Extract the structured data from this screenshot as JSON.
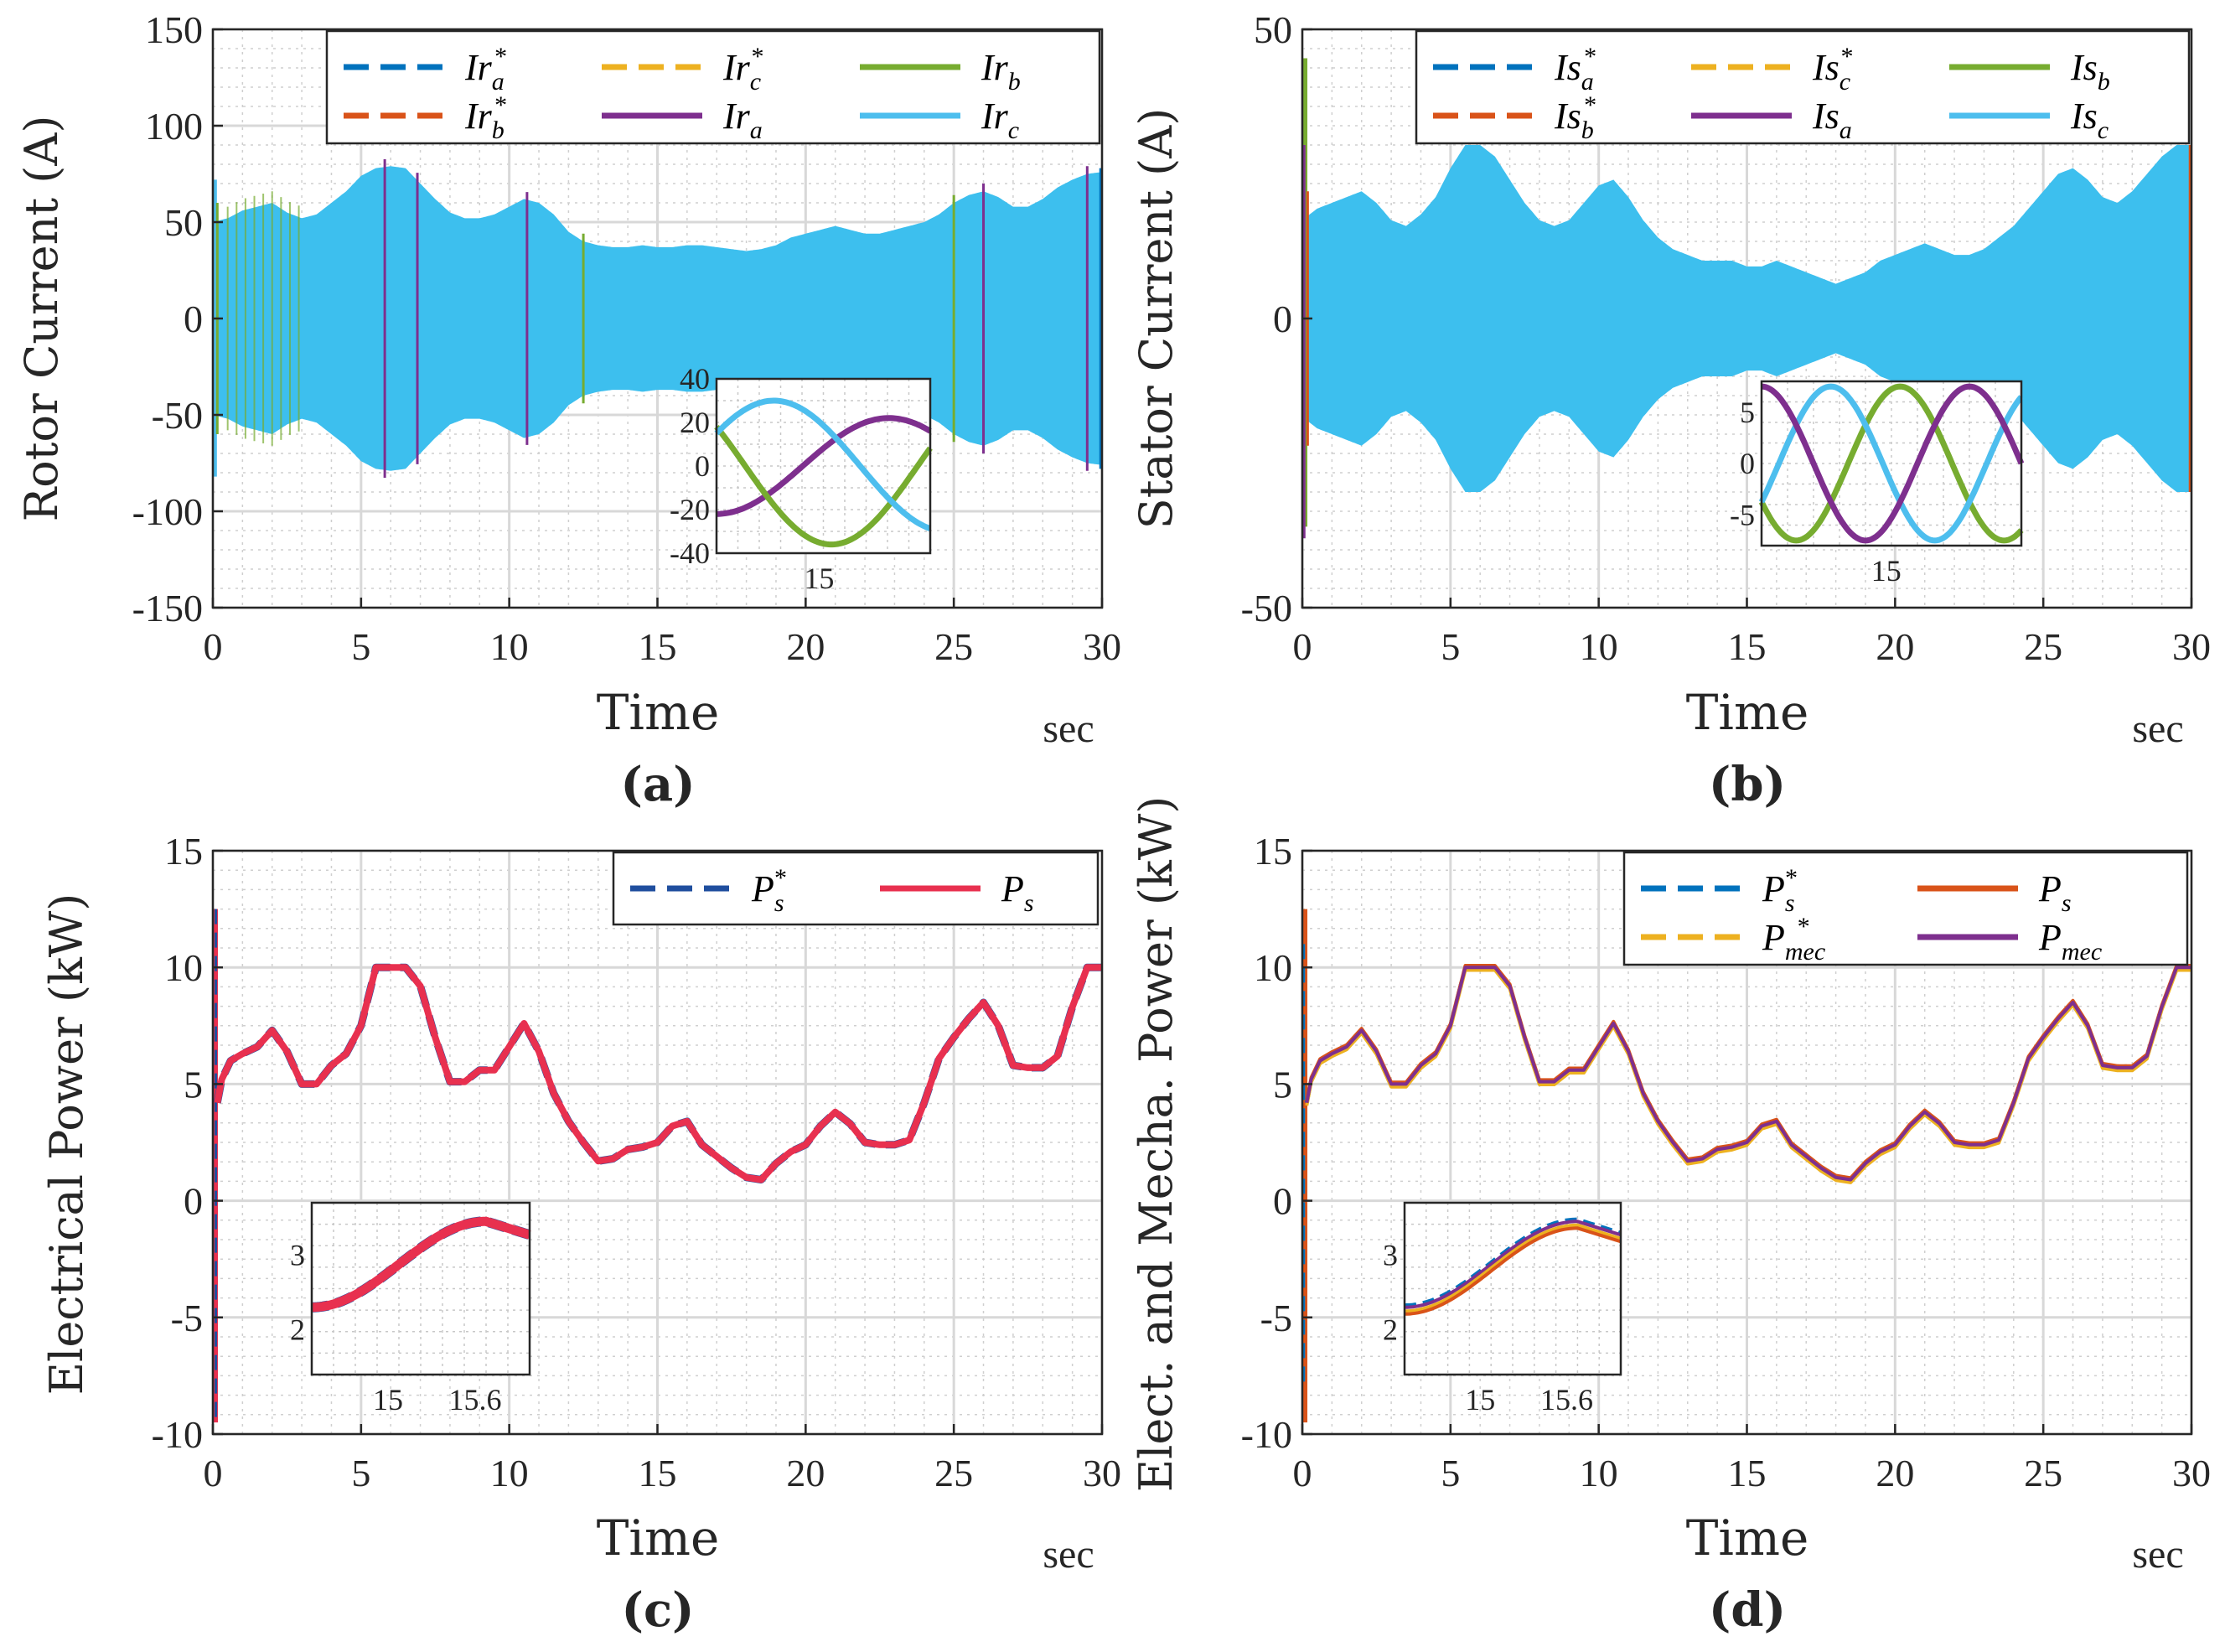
{
  "chart_data": [
    {
      "type": "line",
      "panel": "(a)",
      "xlabel": "Time",
      "x_unit": "sec",
      "ylabel": "Rotor Current (A)",
      "xlim": [
        0,
        30
      ],
      "ylim": [
        -150,
        150
      ],
      "xticks": [
        "0",
        "5",
        "10",
        "15",
        "20",
        "25",
        "30"
      ],
      "yticks": [
        "150",
        "100",
        "50",
        "0",
        "-50",
        "-100",
        "-150"
      ],
      "legend_position": "top-right",
      "legend": [
        {
          "label": "Ir_a*",
          "base": "Ir",
          "sub": "a",
          "sup": "*",
          "color": "#0072BD",
          "dash": true
        },
        {
          "label": "Ir_c*",
          "base": "Ir",
          "sub": "c",
          "sup": "*",
          "color": "#EDB120",
          "dash": true
        },
        {
          "label": "Ir_b",
          "base": "Ir",
          "sub": "b",
          "sup": "",
          "color": "#77AC30",
          "dash": false
        },
        {
          "label": "Ir_b*",
          "base": "Ir",
          "sub": "b",
          "sup": "*",
          "color": "#D95319",
          "dash": true
        },
        {
          "label": "Ir_a",
          "base": "Ir",
          "sub": "a",
          "sup": "",
          "color": "#7E2F8E",
          "dash": false
        },
        {
          "label": "Ir_c",
          "base": "Ir",
          "sub": "c",
          "sup": "",
          "color": "#4DBEEE",
          "dash": false
        }
      ],
      "envelope_series": {
        "name": "Ir amplitude envelope",
        "x": [
          0,
          0.5,
          1,
          1.5,
          2,
          2.5,
          3,
          3.5,
          4,
          4.5,
          5,
          5.5,
          6,
          6.5,
          7,
          7.5,
          8,
          8.5,
          9,
          9.5,
          10,
          10.5,
          11,
          11.5,
          12,
          12.5,
          13,
          13.5,
          14,
          14.5,
          15,
          15.5,
          16,
          16.5,
          17,
          17.5,
          18,
          18.5,
          19,
          19.5,
          20,
          20.5,
          21,
          21.5,
          22,
          22.5,
          23,
          23.5,
          24,
          24.5,
          25,
          25.5,
          26,
          26.5,
          27,
          27.5,
          28,
          28.5,
          29,
          29.5,
          30
        ],
        "y": [
          50,
          52,
          56,
          58,
          60,
          55,
          52,
          54,
          60,
          66,
          74,
          78,
          79,
          78,
          70,
          62,
          55,
          52,
          52,
          54,
          58,
          62,
          60,
          54,
          45,
          40,
          38,
          37,
          37,
          38,
          37,
          37,
          38,
          38,
          37,
          36,
          35,
          36,
          38,
          42,
          44,
          46,
          48,
          46,
          44,
          44,
          46,
          48,
          50,
          54,
          60,
          64,
          66,
          63,
          58,
          58,
          62,
          68,
          72,
          75,
          76
        ]
      },
      "inset": {
        "xtick": "15",
        "yticks": [
          "40",
          "20",
          "0",
          "-20",
          "-40"
        ],
        "ylim": [
          -40,
          40
        ],
        "series": [
          {
            "name": "Ir_a",
            "color": "#7E2F8E",
            "amplitude": 22,
            "phase_deg": 180
          },
          {
            "name": "Ir_b",
            "color": "#77AC30",
            "amplitude": 36,
            "phase_deg": 60
          },
          {
            "name": "Ir_c",
            "color": "#4DBEEE",
            "amplitude": 30,
            "phase_deg": -60
          }
        ]
      }
    },
    {
      "type": "line",
      "panel": "(b)",
      "xlabel": "Time",
      "x_unit": "sec",
      "ylabel": "Stator Current (A)",
      "xlim": [
        0,
        30
      ],
      "ylim": [
        -50,
        50
      ],
      "xticks": [
        "0",
        "5",
        "10",
        "15",
        "20",
        "25",
        "30"
      ],
      "yticks": [
        "50",
        "0",
        "-50"
      ],
      "legend_position": "top-right",
      "legend": [
        {
          "label": "Is_a*",
          "base": "Is",
          "sub": "a",
          "sup": "*",
          "color": "#0072BD",
          "dash": true
        },
        {
          "label": "Is_c*",
          "base": "Is",
          "sub": "c",
          "sup": "*",
          "color": "#EDB120",
          "dash": true
        },
        {
          "label": "Is_b",
          "base": "Is",
          "sub": "b",
          "sup": "",
          "color": "#77AC30",
          "dash": false
        },
        {
          "label": "Is_b*",
          "base": "Is",
          "sub": "b",
          "sup": "*",
          "color": "#D95319",
          "dash": true
        },
        {
          "label": "Is_a",
          "base": "Is",
          "sub": "a",
          "sup": "",
          "color": "#7E2F8E",
          "dash": false
        },
        {
          "label": "Is_c",
          "base": "Is",
          "sub": "c",
          "sup": "",
          "color": "#4DBEEE",
          "dash": false
        }
      ],
      "envelope_series": {
        "name": "Is amplitude envelope",
        "x": [
          0,
          0.5,
          1,
          1.5,
          2,
          2.5,
          3,
          3.5,
          4,
          4.5,
          5,
          5.5,
          6,
          6.5,
          7,
          7.5,
          8,
          8.5,
          9,
          9.5,
          10,
          10.5,
          11,
          11.5,
          12,
          12.5,
          13,
          13.5,
          14,
          14.5,
          15,
          15.5,
          16,
          16.5,
          17,
          17.5,
          18,
          18.5,
          19,
          19.5,
          20,
          20.5,
          21,
          21.5,
          22,
          22.5,
          23,
          23.5,
          24,
          24.5,
          25,
          25.5,
          26,
          26.5,
          27,
          27.5,
          28,
          28.5,
          29,
          29.5,
          30
        ],
        "y": [
          17,
          19,
          20,
          21,
          22,
          20,
          17,
          16,
          18,
          21,
          26,
          30,
          30,
          28,
          24,
          20,
          17,
          16,
          17,
          20,
          23,
          24,
          21,
          17,
          14,
          12,
          11,
          10,
          10,
          10,
          9,
          9,
          10,
          9,
          8,
          7,
          6,
          7,
          8,
          10,
          11,
          12,
          13,
          12,
          11,
          11,
          12,
          14,
          16,
          19,
          22,
          25,
          26,
          24,
          21,
          20,
          22,
          25,
          28,
          30,
          30
        ]
      },
      "inset": {
        "xtick": "15",
        "yticks": [
          "5",
          "0",
          "-5"
        ],
        "ylim": [
          -8,
          8
        ],
        "series": [
          {
            "name": "Is_b",
            "color": "#77AC30",
            "amplitude": 7.5,
            "phase_deg": 120
          },
          {
            "name": "Is_c",
            "color": "#4DBEEE",
            "amplitude": 7.5,
            "phase_deg": -120
          },
          {
            "name": "Is_a",
            "color": "#7E2F8E",
            "amplitude": 7.5,
            "phase_deg": 0
          }
        ]
      }
    },
    {
      "type": "line",
      "panel": "(c)",
      "xlabel": "Time",
      "x_unit": "sec",
      "ylabel": "Electrical Power (kW)",
      "xlim": [
        0,
        30
      ],
      "ylim": [
        -10,
        15
      ],
      "xticks": [
        "0",
        "5",
        "10",
        "15",
        "20",
        "25",
        "30"
      ],
      "yticks": [
        "15",
        "10",
        "5",
        "0",
        "-5",
        "-10"
      ],
      "legend_position": "top-right",
      "legend": [
        {
          "label": "P_s*",
          "base": "P",
          "sub": "s",
          "sup": "*",
          "color": "#1F4E9E",
          "dash": true
        },
        {
          "label": "P_s",
          "base": "P",
          "sub": "s",
          "sup": "",
          "color": "#E8304F",
          "dash": false
        }
      ],
      "series": [
        {
          "name": "P_s",
          "color": "#E8304F",
          "x": [
            0.15,
            0.3,
            0.6,
            1,
            1.5,
            2,
            2.5,
            3,
            3.5,
            4,
            4.5,
            5,
            5.5,
            6,
            6.5,
            7,
            7.5,
            8,
            8.5,
            9,
            9.5,
            10,
            10.5,
            11,
            11.5,
            12,
            12.5,
            13,
            13.5,
            14,
            14.5,
            15,
            15.5,
            16,
            16.5,
            17,
            17.5,
            18,
            18.5,
            19,
            19.5,
            20,
            20.5,
            21,
            21.5,
            22,
            22.5,
            23,
            23.5,
            24,
            24.5,
            25,
            25.5,
            26,
            26.5,
            27,
            27.5,
            28,
            28.5,
            29,
            29.5,
            30
          ],
          "y": [
            4.2,
            5.2,
            6.0,
            6.3,
            6.6,
            7.3,
            6.4,
            5.0,
            5.0,
            5.8,
            6.3,
            7.5,
            10.0,
            10.0,
            10.0,
            9.2,
            7.0,
            5.1,
            5.1,
            5.6,
            5.6,
            6.6,
            7.6,
            6.4,
            4.6,
            3.4,
            2.5,
            1.7,
            1.8,
            2.2,
            2.3,
            2.5,
            3.2,
            3.4,
            2.4,
            1.9,
            1.4,
            1.0,
            0.9,
            1.6,
            2.1,
            2.4,
            3.2,
            3.8,
            3.3,
            2.5,
            2.4,
            2.4,
            2.6,
            4.2,
            6.1,
            7.0,
            7.8,
            8.5,
            7.5,
            5.8,
            5.7,
            5.7,
            6.2,
            8.3,
            10.0,
            10.0
          ]
        }
      ],
      "inset": {
        "xticks": [
          "15",
          "15.6"
        ],
        "yticks": [
          "3",
          "2"
        ],
        "ylim": [
          1.4,
          3.7
        ]
      }
    },
    {
      "type": "line",
      "panel": "(d)",
      "xlabel": "Time",
      "x_unit": "sec",
      "ylabel": "Elect. and Mecha. Power (kW)",
      "xlim": [
        0,
        30
      ],
      "ylim": [
        -10,
        15
      ],
      "xticks": [
        "0",
        "5",
        "10",
        "15",
        "20",
        "25",
        "30"
      ],
      "yticks": [
        "15",
        "10",
        "5",
        "0",
        "-5",
        "-10"
      ],
      "legend_position": "top-right",
      "legend": [
        {
          "label": "P_s*",
          "base": "P",
          "sub": "s",
          "sup": "*",
          "color": "#0072BD",
          "dash": true
        },
        {
          "label": "P_s",
          "base": "P",
          "sub": "s",
          "sup": "",
          "color": "#D95319",
          "dash": false
        },
        {
          "label": "P_mec*",
          "base": "P",
          "sub": "mec",
          "sup": "*",
          "color": "#EDB120",
          "dash": true
        },
        {
          "label": "P_mec",
          "base": "P",
          "sub": "mec",
          "sup": "",
          "color": "#7E2F8E",
          "dash": false
        }
      ],
      "series": [
        {
          "name": "P_s",
          "color": "#D95319",
          "offset": 0.08
        },
        {
          "name": "P_mec*",
          "color": "#EDB120",
          "offset": -0.12
        },
        {
          "name": "P_mec",
          "color": "#7E2F8E",
          "offset": 0.0
        }
      ],
      "inset": {
        "xticks": [
          "15",
          "15.6"
        ],
        "yticks": [
          "3",
          "2"
        ],
        "ylim": [
          1.4,
          3.7
        ]
      }
    }
  ]
}
